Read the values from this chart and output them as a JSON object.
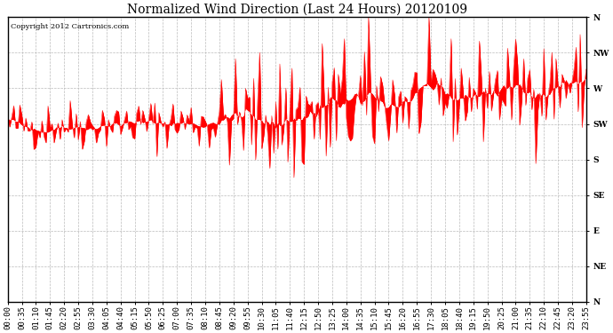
{
  "title": "Normalized Wind Direction (Last 24 Hours) 20120109",
  "copyright_text": "Copyright 2012 Cartronics.com",
  "y_labels": [
    "N",
    "NW",
    "W",
    "SW",
    "S",
    "SE",
    "E",
    "NE",
    "N"
  ],
  "y_ticks": [
    1.0,
    0.875,
    0.75,
    0.625,
    0.5,
    0.375,
    0.25,
    0.125,
    0.0
  ],
  "x_tick_labels": [
    "00:00",
    "00:35",
    "01:10",
    "01:45",
    "02:20",
    "02:55",
    "03:30",
    "04:05",
    "04:40",
    "05:15",
    "05:50",
    "06:25",
    "07:00",
    "07:35",
    "08:10",
    "08:45",
    "09:20",
    "09:55",
    "10:30",
    "11:05",
    "11:40",
    "12:15",
    "12:50",
    "13:25",
    "14:00",
    "14:35",
    "15:10",
    "15:45",
    "16:20",
    "16:55",
    "17:30",
    "18:05",
    "18:40",
    "19:15",
    "19:50",
    "20:25",
    "21:00",
    "21:35",
    "22:10",
    "22:45",
    "23:20",
    "23:55"
  ],
  "line_color": "#ff0000",
  "background_color": "#ffffff",
  "grid_color": "#bbbbbb",
  "title_fontsize": 10,
  "tick_fontsize": 6.5,
  "seed": 42,
  "n_points": 288,
  "figwidth": 6.9,
  "figheight": 3.75,
  "dpi": 100
}
